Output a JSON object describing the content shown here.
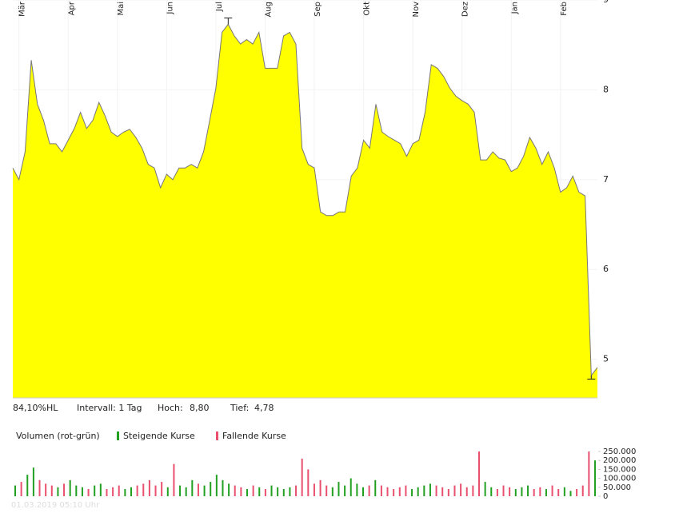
{
  "chart_data": [
    {
      "type": "area",
      "categories": [
        null,
        "Mär",
        null,
        null,
        null,
        null,
        null,
        null,
        null,
        "Apr",
        null,
        null,
        null,
        null,
        null,
        null,
        null,
        "Mai",
        null,
        null,
        null,
        null,
        null,
        null,
        null,
        "Jun",
        null,
        null,
        null,
        null,
        null,
        null,
        null,
        "Jul",
        null,
        null,
        null,
        null,
        null,
        null,
        null,
        "Aug",
        null,
        null,
        null,
        null,
        null,
        null,
        null,
        "Sep",
        null,
        null,
        null,
        null,
        null,
        null,
        null,
        "Okt",
        null,
        null,
        null,
        null,
        null,
        null,
        null,
        "Nov",
        null,
        null,
        null,
        null,
        null,
        null,
        null,
        "Dez",
        null,
        null,
        null,
        null,
        null,
        null,
        null,
        "Jan",
        null,
        null,
        null,
        null,
        null,
        null,
        null,
        "Feb",
        null,
        null,
        null,
        null,
        null,
        null
      ],
      "values": [
        7.13,
        7.0,
        7.31,
        8.33,
        7.84,
        7.66,
        7.4,
        7.4,
        7.31,
        7.44,
        7.57,
        7.75,
        7.57,
        7.66,
        7.86,
        7.71,
        7.53,
        7.48,
        7.53,
        7.56,
        7.47,
        7.35,
        7.17,
        7.13,
        6.91,
        7.06,
        7.0,
        7.13,
        7.13,
        7.17,
        7.13,
        7.31,
        7.66,
        8.02,
        8.64,
        8.73,
        8.6,
        8.51,
        8.56,
        8.51,
        8.64,
        8.24,
        8.24,
        8.24,
        8.6,
        8.64,
        8.51,
        7.35,
        7.17,
        7.13,
        6.64,
        6.6,
        6.6,
        6.64,
        6.64,
        7.04,
        7.13,
        7.44,
        7.35,
        7.84,
        7.53,
        7.48,
        7.44,
        7.4,
        7.26,
        7.4,
        7.44,
        7.75,
        8.28,
        8.24,
        8.15,
        8.02,
        7.93,
        7.88,
        7.84,
        7.75,
        7.22,
        7.22,
        7.31,
        7.24,
        7.22,
        7.09,
        7.13,
        7.26,
        7.47,
        7.35,
        7.17,
        7.31,
        7.13,
        6.86,
        6.91,
        7.04,
        6.86,
        6.82,
        4.82,
        4.91
      ],
      "color": "#ffff00",
      "line_color": "#777777",
      "ylim": [
        4.57,
        9.0
      ],
      "yticks": [
        5,
        6,
        7,
        8,
        9
      ],
      "grid": true,
      "stats": {
        "hl": "84,10%HL",
        "interval": "Intervall: 1 Tag",
        "high_label": "Hoch:",
        "high": {
          "value": 8.8,
          "label": "8,80"
        },
        "low_label": "Tief:",
        "low": {
          "value": 4.78,
          "label": "4,78"
        }
      }
    },
    {
      "type": "bar",
      "title": "Volumen (rot-grün)",
      "legend": [
        {
          "name": "Steigende Kurse",
          "color": "#22a022"
        },
        {
          "name": "Fallende Kurse",
          "color": "#e8506e"
        }
      ],
      "values": [
        60000,
        80000,
        120000,
        160000,
        90000,
        70000,
        60000,
        50000,
        70000,
        90000,
        60000,
        50000,
        40000,
        60000,
        70000,
        40000,
        50000,
        60000,
        40000,
        50000,
        60000,
        70000,
        90000,
        60000,
        80000,
        50000,
        180000,
        60000,
        50000,
        90000,
        70000,
        60000,
        80000,
        120000,
        90000,
        70000,
        60000,
        50000,
        40000,
        60000,
        50000,
        40000,
        60000,
        50000,
        40000,
        50000,
        60000,
        210000,
        150000,
        70000,
        90000,
        60000,
        50000,
        80000,
        60000,
        100000,
        70000,
        50000,
        60000,
        90000,
        60000,
        50000,
        40000,
        50000,
        60000,
        40000,
        50000,
        60000,
        70000,
        60000,
        50000,
        40000,
        60000,
        70000,
        50000,
        60000,
        250000,
        80000,
        50000,
        40000,
        60000,
        50000,
        40000,
        50000,
        60000,
        40000,
        50000,
        40000,
        60000,
        40000,
        50000,
        30000,
        40000,
        60000,
        250000,
        200000
      ],
      "colors": [
        "#22a022",
        "#e8506e",
        "#22a022",
        "#22a022",
        "#e8506e",
        "#e8506e",
        "#e8506e",
        "#22a022",
        "#e8506e",
        "#22a022",
        "#22a022",
        "#22a022",
        "#e8506e",
        "#22a022",
        "#22a022",
        "#e8506e",
        "#e8506e",
        "#e8506e",
        "#22a022",
        "#22a022",
        "#e8506e",
        "#e8506e",
        "#e8506e",
        "#e8506e",
        "#e8506e",
        "#22a022",
        "#e8506e",
        "#22a022",
        "#22a022",
        "#22a022",
        "#e8506e",
        "#22a022",
        "#22a022",
        "#22a022",
        "#22a022",
        "#22a022",
        "#e8506e",
        "#e8506e",
        "#22a022",
        "#e8506e",
        "#22a022",
        "#e8506e",
        "#22a022",
        "#22a022",
        "#22a022",
        "#22a022",
        "#e8506e",
        "#e8506e",
        "#e8506e",
        "#e8506e",
        "#e8506e",
        "#e8506e",
        "#22a022",
        "#22a022",
        "#22a022",
        "#22a022",
        "#22a022",
        "#22a022",
        "#e8506e",
        "#22a022",
        "#e8506e",
        "#e8506e",
        "#e8506e",
        "#e8506e",
        "#e8506e",
        "#22a022",
        "#22a022",
        "#22a022",
        "#22a022",
        "#e8506e",
        "#e8506e",
        "#e8506e",
        "#e8506e",
        "#e8506e",
        "#e8506e",
        "#e8506e",
        "#e8506e",
        "#22a022",
        "#22a022",
        "#e8506e",
        "#e8506e",
        "#e8506e",
        "#22a022",
        "#22a022",
        "#22a022",
        "#e8506e",
        "#e8506e",
        "#22a022",
        "#e8506e",
        "#e8506e",
        "#22a022",
        "#22a022",
        "#e8506e",
        "#e8506e",
        "#e8506e",
        "#22a022"
      ],
      "ylim": [
        0,
        250000
      ],
      "yticks": [
        0,
        {
          "value": 50000,
          "label": "50.000"
        },
        {
          "value": 100000,
          "label": "100.000"
        },
        {
          "value": 150000,
          "label": "150.000"
        },
        {
          "value": 200000,
          "label": "200.000"
        },
        {
          "value": 250000,
          "label": "250.000"
        }
      ],
      "timestamp": "01.03.2019 05:10 Uhr"
    }
  ]
}
